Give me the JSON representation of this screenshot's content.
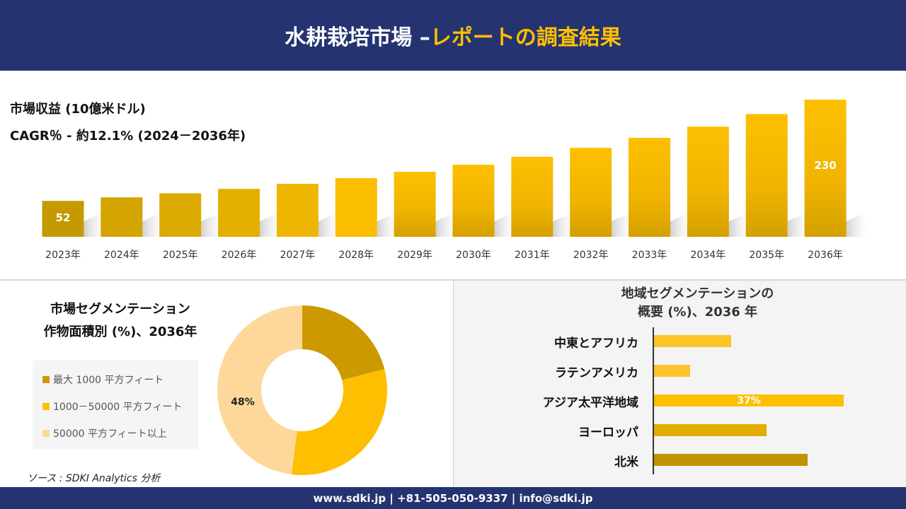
{
  "header": {
    "title_main": "水耕栽培市場 –",
    "title_accent": "レポートの調査結果"
  },
  "revenue": {
    "title": "市場収益 (10億米ドル)",
    "cagr": "CAGR％ - 約12.1% (2024－2036年)"
  },
  "chart_data": [
    {
      "type": "bar",
      "title": "市場収益 (10億米ドル)",
      "categories": [
        "2023年",
        "2024年",
        "2025年",
        "2026年",
        "2027年",
        "2028年",
        "2029年",
        "2030年",
        "2031年",
        "2032年",
        "2033年",
        "2034年",
        "2035年",
        "2036年"
      ],
      "values": [
        52,
        58.3,
        65.3,
        73.2,
        82.1,
        92.0,
        103.2,
        115.6,
        129.6,
        145.3,
        162.9,
        182.6,
        204.7,
        230
      ],
      "data_labels": {
        "0": "52",
        "13": "230"
      },
      "colors": [
        "#c49a00",
        "#d4a400",
        "#dcaa00",
        "#e4b000",
        "#eeb600",
        "#fbbf00",
        "#fcc000",
        "#fcc000",
        "#fcc000",
        "#fcc000",
        "#fcc000",
        "#fcc000",
        "#fcc000",
        "#fcc000"
      ],
      "grid": false
    },
    {
      "type": "pie",
      "title": "市場セグメンテーション 作物面積別 (%)、2036年",
      "labels": [
        "最大 1000 平方フィート",
        "1000－50000 平方フィート",
        "50000 平方フィート以上"
      ],
      "values": [
        21,
        31,
        48
      ],
      "colors": [
        "#cc9a00",
        "#fdbf00",
        "#fdd89a"
      ],
      "data_labels": {
        "2": "48%"
      },
      "legend": "left"
    },
    {
      "type": "bar",
      "orientation": "horizontal",
      "title": "地域セグメンテーションの 概要 (%)、2036 年",
      "categories": [
        "中東とアフリカ",
        "ラテンアメリカ",
        "アジア太平洋地域",
        "ヨーロッパ",
        "北米"
      ],
      "values": [
        15,
        7,
        37,
        22,
        30
      ],
      "colors": [
        "#fec52a",
        "#fec52a",
        "#fdc000",
        "#e2ac00",
        "#c29300"
      ],
      "data_labels": {
        "2": "37%"
      }
    }
  ],
  "segment": {
    "title_line1": "市場セグメンテーション",
    "title_line2": "作物面積別 (%)、2036年"
  },
  "region": {
    "title_line1": "地域セグメンテーションの",
    "title_line2": "概要 (%)、2036 年"
  },
  "source": "ソース : SDKI Analytics 分析",
  "footer": "www.sdki.jp | +81-505-050-9337 | info@sdki.jp"
}
